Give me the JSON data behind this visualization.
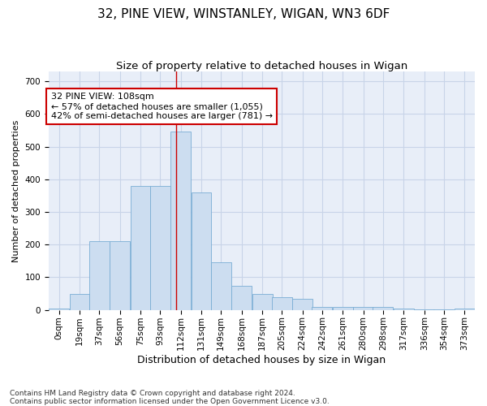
{
  "title": "32, PINE VIEW, WINSTANLEY, WIGAN, WN3 6DF",
  "subtitle": "Size of property relative to detached houses in Wigan",
  "xlabel": "Distribution of detached houses by size in Wigan",
  "ylabel": "Number of detached properties",
  "bar_color": "#ccddf0",
  "bar_edge_color": "#7aadd4",
  "grid_color": "#c8d4e8",
  "background_color": "#e8eef8",
  "property_line_color": "#cc0000",
  "property_value": 108,
  "annotation_text": "32 PINE VIEW: 108sqm\n← 57% of detached houses are smaller (1,055)\n42% of semi-detached houses are larger (781) →",
  "annotation_box_color": "#ffffff",
  "annotation_box_edge": "#cc0000",
  "categories": [
    "0sqm",
    "19sqm",
    "37sqm",
    "56sqm",
    "75sqm",
    "93sqm",
    "112sqm",
    "131sqm",
    "149sqm",
    "168sqm",
    "187sqm",
    "205sqm",
    "224sqm",
    "242sqm",
    "261sqm",
    "280sqm",
    "298sqm",
    "317sqm",
    "336sqm",
    "354sqm",
    "373sqm"
  ],
  "bin_centers": [
    0,
    19,
    37,
    56,
    75,
    93,
    112,
    131,
    149,
    168,
    187,
    205,
    224,
    242,
    261,
    280,
    298,
    317,
    336,
    354,
    373
  ],
  "values": [
    5,
    50,
    210,
    210,
    380,
    380,
    545,
    360,
    145,
    75,
    50,
    40,
    35,
    10,
    10,
    10,
    10,
    5,
    1,
    1,
    5
  ],
  "ylim": [
    0,
    730
  ],
  "yticks": [
    0,
    100,
    200,
    300,
    400,
    500,
    600,
    700
  ],
  "footnote": "Contains HM Land Registry data © Crown copyright and database right 2024.\nContains public sector information licensed under the Open Government Licence v3.0.",
  "title_fontsize": 11,
  "subtitle_fontsize": 9.5,
  "xlabel_fontsize": 9,
  "ylabel_fontsize": 8,
  "tick_fontsize": 7.5,
  "annotation_fontsize": 8,
  "footnote_fontsize": 6.5
}
